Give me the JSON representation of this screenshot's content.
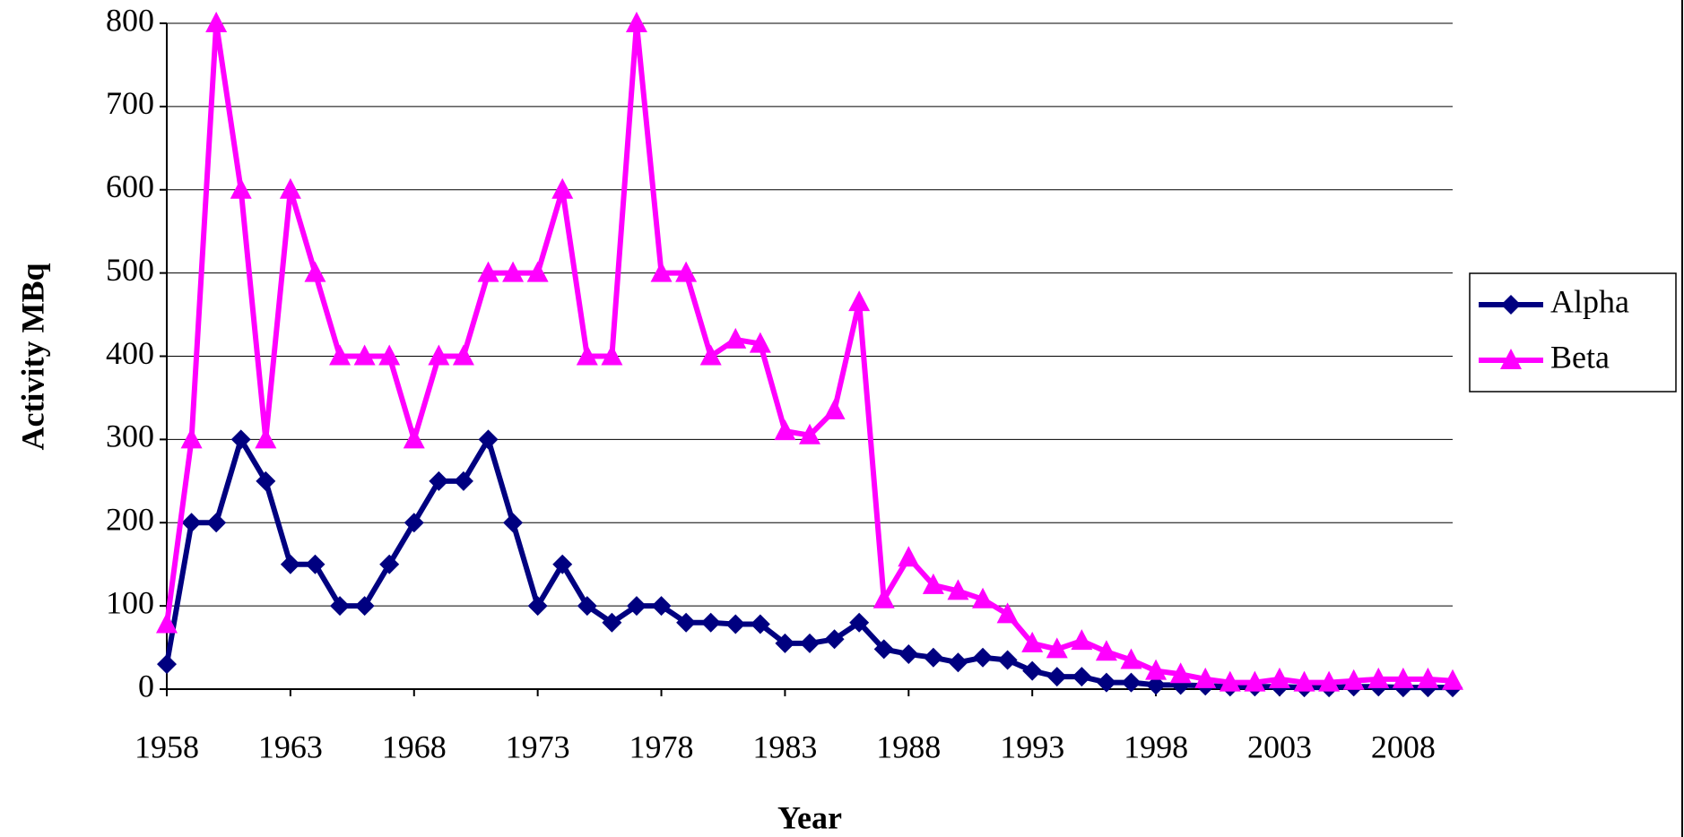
{
  "chart_data": {
    "type": "line",
    "x_label": "Year",
    "y_label": "Activity MBq",
    "x": [
      1958,
      1959,
      1960,
      1961,
      1962,
      1963,
      1964,
      1965,
      1966,
      1967,
      1968,
      1969,
      1970,
      1971,
      1972,
      1973,
      1974,
      1975,
      1976,
      1977,
      1978,
      1979,
      1980,
      1981,
      1982,
      1983,
      1984,
      1985,
      1986,
      1987,
      1988,
      1989,
      1990,
      1991,
      1992,
      1993,
      1994,
      1995,
      1996,
      1997,
      1998,
      1999,
      2000,
      2001,
      2002,
      2003,
      2004,
      2005,
      2006,
      2007,
      2008,
      2009,
      2010
    ],
    "series": [
      {
        "name": "Alpha",
        "color": "#000080",
        "marker": "diamond",
        "values": [
          30,
          200,
          200,
          300,
          250,
          150,
          150,
          100,
          100,
          150,
          200,
          250,
          250,
          300,
          200,
          100,
          150,
          100,
          80,
          100,
          100,
          80,
          80,
          78,
          78,
          55,
          55,
          60,
          80,
          48,
          42,
          38,
          32,
          38,
          35,
          22,
          15,
          15,
          8,
          8,
          5,
          5,
          4,
          3,
          3,
          3,
          2,
          2,
          3,
          3,
          2,
          2,
          2
        ]
      },
      {
        "name": "Beta",
        "color": "#ff00ff",
        "marker": "triangle",
        "values": [
          78,
          300,
          800,
          600,
          300,
          600,
          500,
          400,
          400,
          400,
          300,
          400,
          400,
          500,
          500,
          500,
          600,
          400,
          400,
          800,
          500,
          500,
          400,
          420,
          415,
          310,
          305,
          335,
          465,
          108,
          158,
          125,
          118,
          108,
          90,
          55,
          48,
          58,
          45,
          35,
          22,
          18,
          12,
          8,
          8,
          12,
          8,
          8,
          10,
          12,
          12,
          12,
          10
        ]
      }
    ],
    "xlim": [
      1958,
      2010
    ],
    "xticks": [
      1958,
      1963,
      1968,
      1973,
      1978,
      1983,
      1988,
      1993,
      1998,
      2003,
      2008
    ],
    "ylim": [
      0,
      800
    ],
    "yticks": [
      0,
      100,
      200,
      300,
      400,
      500,
      600,
      700,
      800
    ],
    "grid": true,
    "legend": "right"
  }
}
